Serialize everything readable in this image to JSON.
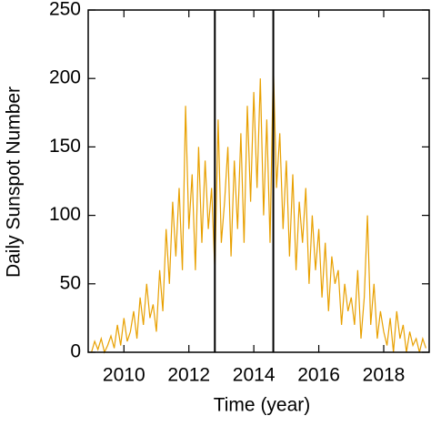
{
  "chart_data": {
    "type": "line",
    "xlabel": "Time (year)",
    "ylabel": "Daily Sunspot Number",
    "x": [
      2009.0,
      2009.1,
      2009.2,
      2009.3,
      2009.4,
      2009.5,
      2009.6,
      2009.7,
      2009.8,
      2009.9,
      2010.0,
      2010.1,
      2010.2,
      2010.3,
      2010.4,
      2010.5,
      2010.6,
      2010.7,
      2010.8,
      2010.9,
      2011.0,
      2011.1,
      2011.2,
      2011.3,
      2011.4,
      2011.5,
      2011.6,
      2011.7,
      2011.8,
      2011.9,
      2012.0,
      2012.1,
      2012.2,
      2012.3,
      2012.4,
      2012.5,
      2012.6,
      2012.7,
      2012.8,
      2012.9,
      2013.0,
      2013.1,
      2013.2,
      2013.3,
      2013.4,
      2013.5,
      2013.6,
      2013.7,
      2013.8,
      2013.9,
      2014.0,
      2014.1,
      2014.2,
      2014.3,
      2014.4,
      2014.5,
      2014.6,
      2014.7,
      2014.8,
      2014.9,
      2015.0,
      2015.1,
      2015.2,
      2015.3,
      2015.4,
      2015.5,
      2015.6,
      2015.7,
      2015.8,
      2015.9,
      2016.0,
      2016.1,
      2016.2,
      2016.3,
      2016.4,
      2016.5,
      2016.6,
      2016.7,
      2016.8,
      2016.9,
      2017.0,
      2017.1,
      2017.2,
      2017.3,
      2017.4,
      2017.5,
      2017.6,
      2017.7,
      2017.8,
      2017.9,
      2018.0,
      2018.1,
      2018.2,
      2018.3,
      2018.4,
      2018.5,
      2018.6,
      2018.7,
      2018.8,
      2018.9,
      2019.0,
      2019.1,
      2019.2,
      2019.3
    ],
    "series": [
      {
        "color": "#e8a000",
        "values": [
          0,
          8,
          2,
          10,
          0,
          5,
          12,
          3,
          20,
          5,
          25,
          8,
          15,
          30,
          10,
          40,
          20,
          50,
          25,
          35,
          15,
          60,
          30,
          90,
          50,
          110,
          70,
          120,
          60,
          180,
          90,
          130,
          60,
          150,
          80,
          140,
          90,
          120,
          60,
          170,
          80,
          110,
          150,
          70,
          140,
          90,
          160,
          80,
          180,
          110,
          190,
          120,
          200,
          100,
          170,
          80,
          210,
          120,
          160,
          90,
          140,
          70,
          130,
          60,
          110,
          80,
          120,
          50,
          100,
          60,
          90,
          40,
          80,
          30,
          70,
          50,
          60,
          20,
          50,
          30,
          40,
          20,
          60,
          10,
          40,
          100,
          20,
          50,
          10,
          30,
          15,
          5,
          25,
          0,
          30,
          10,
          20,
          0,
          15,
          5,
          10,
          0,
          10,
          3
        ]
      }
    ],
    "vlines": [
      2012.8,
      2014.6
    ],
    "xlim": [
      2008.9,
      2019.4
    ],
    "xticks": [
      2010,
      2012,
      2014,
      2016,
      2018
    ],
    "ylim": [
      0,
      250
    ],
    "yticks": [
      0,
      50,
      100,
      150,
      200,
      250
    ]
  }
}
